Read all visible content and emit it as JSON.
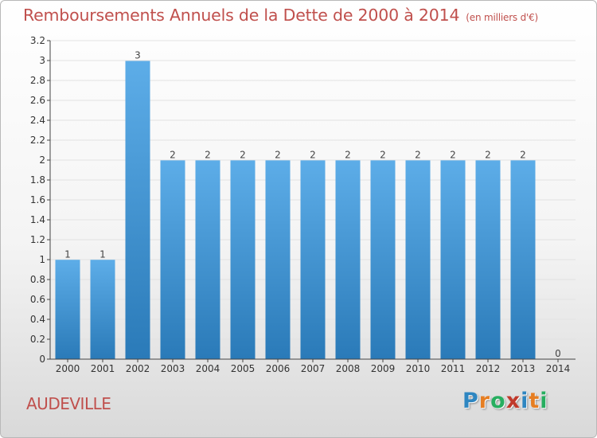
{
  "chart_data": {
    "type": "bar",
    "title": "Remboursements Annuels de la Dette de 2000 à 2014",
    "unit": "(en milliers d'€)",
    "categories": [
      "2000",
      "2001",
      "2002",
      "2003",
      "2004",
      "2005",
      "2006",
      "2007",
      "2008",
      "2009",
      "2010",
      "2011",
      "2012",
      "2013",
      "2014"
    ],
    "values": [
      0.998,
      0.998,
      2.996,
      1.997,
      1.997,
      1.997,
      1.997,
      1.997,
      1.997,
      1.997,
      1.997,
      1.997,
      1.997,
      1.997,
      0
    ],
    "data_labels": [
      "1",
      "1",
      "3",
      "2",
      "2",
      "2",
      "2",
      "2",
      "2",
      "2",
      "2",
      "2",
      "2",
      "2",
      "0"
    ],
    "ylim": [
      0,
      3.2
    ],
    "yticks": [
      "0",
      "0.2",
      "0.4",
      "0.6",
      "0.8",
      "1",
      "1.2",
      "1.4",
      "1.6",
      "1.8",
      "2",
      "2.2",
      "2.4",
      "2.6",
      "2.8",
      "3",
      "3.2"
    ],
    "xlabel": "",
    "ylabel": "",
    "grid": true,
    "bar_color_top": "#5dade8",
    "bar_color_bottom": "#2a7ab8"
  },
  "footer": {
    "commune": "AUDEVILLE",
    "logo_letters": [
      "P",
      "r",
      "o",
      "x",
      "i",
      "t",
      "i"
    ],
    "logo_colors": [
      "#2e86c1",
      "#e67e22",
      "#27ae60",
      "#c0392b",
      "#2e86c1",
      "#e67e22",
      "#27ae60"
    ]
  }
}
